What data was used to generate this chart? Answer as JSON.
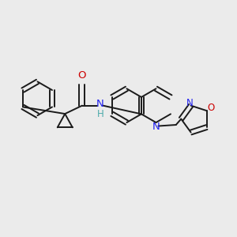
{
  "background_color": "#ebebeb",
  "line_color": "#1a1a1a",
  "bond_width": 1.4,
  "N_color": "#2020ee",
  "O_color": "#cc0000",
  "H_color": "#4daaaa",
  "figsize": [
    3.0,
    3.0
  ],
  "dpi": 100,
  "xlim": [
    0,
    10
  ],
  "ylim": [
    0,
    10
  ]
}
